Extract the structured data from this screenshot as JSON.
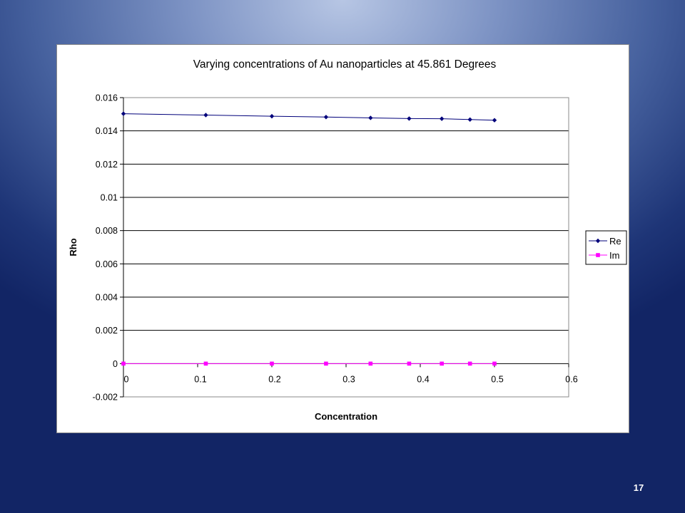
{
  "slide": {
    "number": "17"
  },
  "colors": {
    "re": "#00007a",
    "im": "#ff00ff",
    "grid": "#000000"
  },
  "chart_data": {
    "type": "line",
    "title": "Varying concentrations of Au nanoparticles at 45.861 Degrees",
    "xlabel": "Concentration",
    "ylabel": "Rho",
    "xlim": [
      0,
      0.6
    ],
    "ylim": [
      -0.002,
      0.016
    ],
    "xticks": [
      "0",
      "0.1",
      "0.2",
      "0.3",
      "0.4",
      "0.5",
      "0.6"
    ],
    "yticks": [
      "-0.002",
      "0",
      "0.002",
      "0.004",
      "0.006",
      "0.008",
      "0.01",
      "0.012",
      "0.014",
      "0.016"
    ],
    "grid": "horizontal",
    "legend_position": "right",
    "x": [
      0,
      0.111,
      0.2,
      0.273,
      0.333,
      0.385,
      0.429,
      0.467,
      0.5
    ],
    "series": [
      {
        "name": "Re",
        "marker": "diamond",
        "values": [
          0.01503,
          0.01495,
          0.01488,
          0.01483,
          0.01478,
          0.01474,
          0.01473,
          0.01468,
          0.01464
        ]
      },
      {
        "name": "Im",
        "marker": "square",
        "values": [
          0,
          0,
          0,
          0,
          0,
          0,
          0,
          0,
          0
        ]
      }
    ]
  }
}
